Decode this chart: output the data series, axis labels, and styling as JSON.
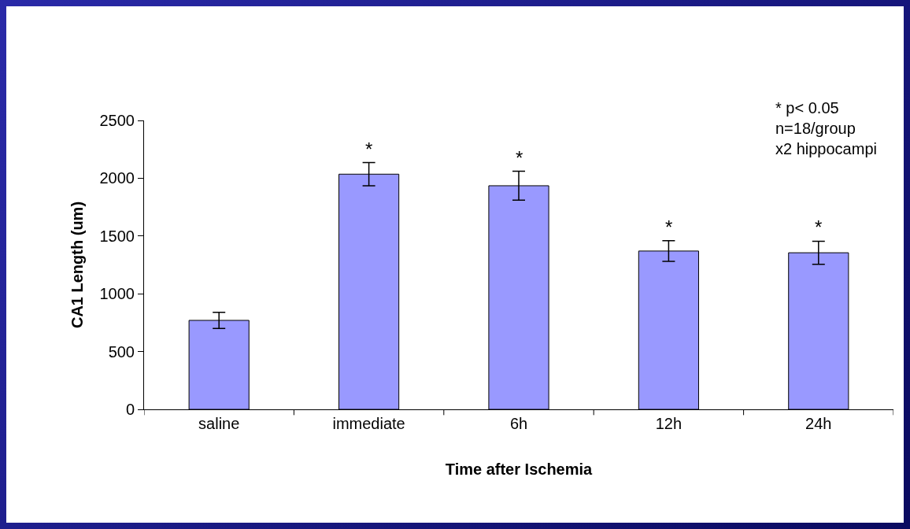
{
  "chart_data": {
    "type": "bar",
    "xlabel": "Time after Ischemia",
    "ylabel": "CA1 Length (um)",
    "categories": [
      "saline",
      "immediate",
      "6h",
      "12h",
      "24h"
    ],
    "values": [
      770,
      2035,
      1935,
      1370,
      1355
    ],
    "errors": [
      70,
      100,
      125,
      90,
      100
    ],
    "color": "#9999ff",
    "ylim": [
      0,
      2500
    ],
    "yticks": [
      0,
      500,
      1000,
      1500,
      2000,
      2500
    ],
    "grid": false,
    "annotations": [
      {
        "text": "*",
        "x": "immediate",
        "y": 2135
      },
      {
        "text": "*",
        "x": "6h",
        "y": 2060
      },
      {
        "text": "*",
        "x": "12h",
        "y": 1460
      },
      {
        "text": "*",
        "x": "24h",
        "y": 1455
      },
      "* p< 0.05\nn=18/group\nx2 hippocampi"
    ]
  }
}
